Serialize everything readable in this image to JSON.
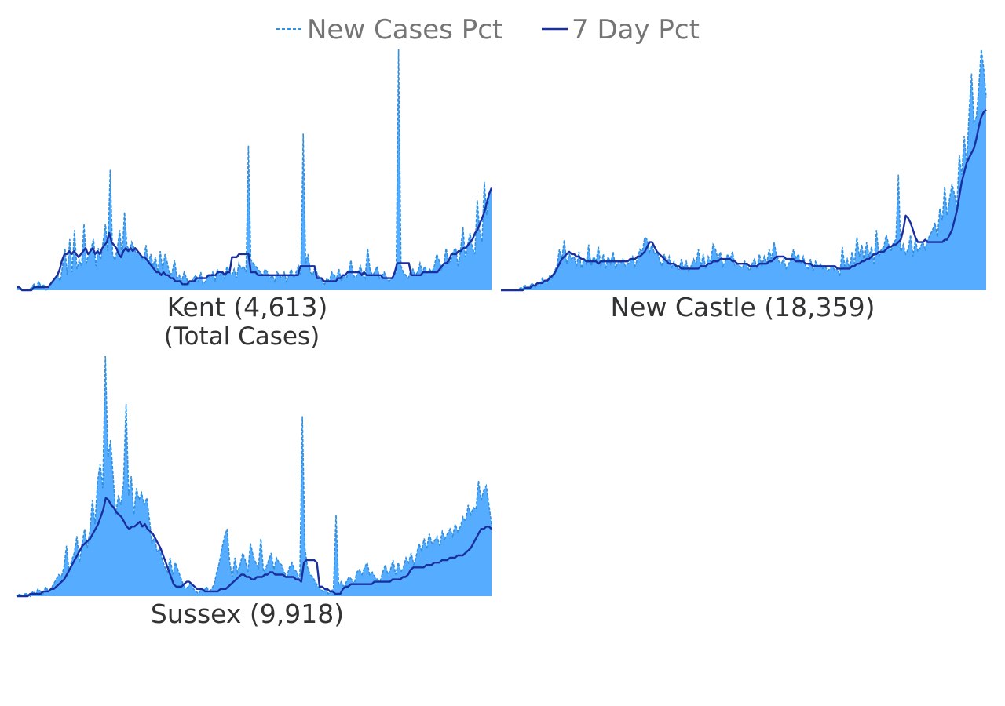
{
  "legend": {
    "new_cases_label": "New Cases Pct",
    "seven_day_label": "7 Day Pct"
  },
  "colors": {
    "area": "#56acff",
    "dashed_line": "#2f8fe0",
    "seven_day_line": "#1a2f9e",
    "legend_text": "#757575",
    "label_text": "#333333"
  },
  "chart_data": [
    {
      "type": "area",
      "county": "Kent",
      "label": "Kent (4,613)",
      "sublabel": "(Total Cases)",
      "series": [
        {
          "name": "New Cases Pct",
          "style": "dashed",
          "values": [
            1,
            1,
            0,
            0,
            0,
            0,
            1,
            2,
            1,
            3,
            1,
            2,
            0,
            1,
            2,
            3,
            4,
            5,
            3,
            8,
            14,
            5,
            17,
            6,
            20,
            7,
            10,
            8,
            22,
            9,
            12,
            14,
            17,
            8,
            14,
            10,
            16,
            22,
            13,
            40,
            12,
            10,
            14,
            20,
            11,
            26,
            15,
            13,
            16,
            14,
            12,
            13,
            11,
            10,
            15,
            9,
            12,
            8,
            11,
            6,
            13,
            7,
            12,
            9,
            5,
            6,
            10,
            4,
            5,
            3,
            6,
            4,
            2,
            3,
            4,
            5,
            3,
            6,
            2,
            3,
            5,
            4,
            6,
            3,
            7,
            5,
            6,
            4,
            8,
            6,
            5,
            7,
            4,
            9,
            7,
            8,
            6,
            48,
            10,
            9,
            8,
            7,
            6,
            5,
            7,
            6,
            4,
            5,
            3,
            6,
            5,
            4,
            6,
            3,
            5,
            7,
            4,
            6,
            8,
            5,
            52,
            9,
            12,
            6,
            5,
            8,
            5,
            4,
            3,
            2,
            4,
            3,
            6,
            5,
            4,
            7,
            3,
            5,
            4,
            6,
            10,
            5,
            4,
            6,
            8,
            5,
            4,
            14,
            7,
            5,
            6,
            8,
            4,
            5,
            6,
            4,
            3,
            4,
            5,
            6,
            80,
            8,
            6,
            5,
            4,
            6,
            7,
            5,
            6,
            9,
            6,
            8,
            6,
            7,
            6,
            8,
            12,
            10,
            7,
            9,
            14,
            9,
            10,
            13,
            14,
            8,
            13,
            21,
            11,
            15,
            19,
            14,
            12,
            30,
            20,
            16,
            36,
            25,
            32,
            34
          ]
        },
        {
          "name": "7 Day Pct",
          "style": "solid",
          "values": [
            1,
            1,
            0,
            0,
            0,
            0,
            0,
            1,
            1,
            1,
            1,
            1,
            1,
            1,
            2,
            3,
            4,
            5,
            7,
            10,
            12,
            12,
            13,
            12,
            13,
            12,
            11,
            12,
            13,
            14,
            12,
            13,
            14,
            12,
            13,
            12,
            14,
            15,
            16,
            19,
            16,
            15,
            14,
            12,
            11,
            13,
            14,
            13,
            14,
            13,
            14,
            13,
            12,
            11,
            11,
            10,
            9,
            8,
            7,
            6,
            6,
            5,
            6,
            5,
            5,
            4,
            4,
            3,
            3,
            3,
            2,
            2,
            2,
            3,
            3,
            3,
            4,
            4,
            4,
            4,
            4,
            5,
            5,
            5,
            5,
            6,
            6,
            6,
            5,
            6,
            6,
            11,
            11,
            11,
            12,
            12,
            12,
            12,
            12,
            6,
            6,
            6,
            5,
            5,
            5,
            5,
            5,
            5,
            5,
            5,
            5,
            5,
            5,
            5,
            5,
            5,
            5,
            5,
            5,
            5,
            8,
            8,
            8,
            8,
            8,
            8,
            8,
            4,
            4,
            4,
            3,
            3,
            3,
            3,
            3,
            3,
            4,
            4,
            5,
            5,
            6,
            6,
            6,
            6,
            6,
            6,
            5,
            6,
            5,
            5,
            5,
            5,
            5,
            5,
            5,
            4,
            4,
            4,
            4,
            4,
            6,
            9,
            9,
            9,
            9,
            9,
            9,
            5,
            5,
            5,
            5,
            5,
            6,
            6,
            6,
            6,
            6,
            6,
            6,
            7,
            8,
            9,
            9,
            10,
            12,
            12,
            12,
            13,
            13,
            14,
            14,
            15,
            16,
            17,
            19,
            20,
            22,
            24,
            26,
            29,
            32,
            34
          ]
        }
      ]
    },
    {
      "type": "area",
      "county": "New Castle",
      "label": "New Castle (18,359)",
      "series": [
        {
          "name": "New Cases Pct",
          "style": "dashed",
          "values": [
            0,
            0,
            0,
            0,
            0,
            0,
            0,
            0,
            1,
            1,
            2,
            1,
            2,
            3,
            1,
            3,
            2,
            5,
            4,
            3,
            6,
            5,
            8,
            10,
            17,
            13,
            21,
            11,
            15,
            13,
            14,
            10,
            16,
            9,
            13,
            11,
            19,
            10,
            14,
            12,
            18,
            10,
            15,
            9,
            14,
            11,
            16,
            9,
            12,
            11,
            13,
            10,
            11,
            12,
            14,
            10,
            13,
            17,
            16,
            22,
            21,
            16,
            19,
            15,
            16,
            13,
            10,
            15,
            11,
            14,
            9,
            12,
            10,
            8,
            13,
            9,
            12,
            8,
            10,
            13,
            11,
            17,
            10,
            15,
            9,
            14,
            12,
            19,
            17,
            13,
            16,
            10,
            12,
            15,
            13,
            16,
            10,
            11,
            10,
            9,
            12,
            10,
            8,
            11,
            13,
            9,
            15,
            10,
            14,
            11,
            17,
            13,
            20,
            15,
            12,
            11,
            13,
            9,
            11,
            13,
            17,
            13,
            15,
            11,
            14,
            10,
            9,
            13,
            8,
            12,
            10,
            11,
            9,
            10,
            8,
            9,
            10,
            8,
            9,
            6,
            18,
            10,
            13,
            9,
            16,
            11,
            22,
            14,
            19,
            12,
            20,
            14,
            18,
            11,
            25,
            14,
            17,
            18,
            23,
            19,
            16,
            20,
            21,
            48,
            16,
            19,
            15,
            17,
            23,
            14,
            21,
            16,
            18,
            20,
            17,
            21,
            23,
            25,
            28,
            22,
            34,
            29,
            43,
            31,
            38,
            44,
            40,
            35,
            56,
            48,
            64,
            52,
            74,
            90,
            70,
            72,
            85,
            100,
            92,
            80
          ]
        },
        {
          "name": "7 Day Pct",
          "style": "solid",
          "values": [
            0,
            0,
            0,
            0,
            0,
            0,
            0,
            0,
            0,
            0,
            1,
            1,
            1,
            2,
            2,
            3,
            3,
            3,
            4,
            4,
            5,
            6,
            7,
            9,
            11,
            13,
            14,
            15,
            16,
            15,
            15,
            14,
            14,
            13,
            13,
            12,
            12,
            12,
            12,
            12,
            11,
            12,
            12,
            12,
            12,
            12,
            12,
            12,
            12,
            12,
            12,
            12,
            12,
            13,
            13,
            13,
            14,
            14,
            15,
            16,
            18,
            20,
            20,
            18,
            16,
            15,
            14,
            13,
            12,
            11,
            11,
            11,
            10,
            10,
            9,
            9,
            9,
            9,
            9,
            9,
            9,
            9,
            10,
            10,
            10,
            11,
            11,
            12,
            12,
            12,
            13,
            13,
            13,
            13,
            13,
            12,
            12,
            11,
            11,
            11,
            11,
            11,
            10,
            10,
            10,
            10,
            11,
            11,
            11,
            11,
            12,
            12,
            13,
            14,
            14,
            14,
            14,
            13,
            13,
            13,
            13,
            12,
            12,
            12,
            12,
            11,
            11,
            11,
            10,
            10,
            10,
            10,
            10,
            10,
            10,
            10,
            10,
            10,
            9,
            9,
            9,
            9,
            9,
            9,
            10,
            10,
            11,
            11,
            12,
            12,
            13,
            13,
            14,
            15,
            15,
            16,
            16,
            16,
            17,
            18,
            18,
            19,
            19,
            20,
            21,
            25,
            31,
            30,
            28,
            25,
            22,
            20,
            20,
            20,
            21,
            20,
            20,
            20,
            20,
            20,
            20,
            20,
            21,
            21,
            23,
            25,
            29,
            33,
            39,
            45,
            49,
            53,
            55,
            57,
            59,
            63,
            68,
            72,
            74,
            75
          ]
        }
      ]
    },
    {
      "type": "area",
      "county": "Sussex",
      "label": "Sussex (9,918)",
      "series": [
        {
          "name": "New Cases Pct",
          "style": "dashed",
          "values": [
            0,
            1,
            0,
            1,
            1,
            0,
            2,
            1,
            3,
            2,
            1,
            4,
            2,
            3,
            5,
            7,
            9,
            8,
            12,
            21,
            10,
            15,
            18,
            25,
            14,
            22,
            28,
            20,
            27,
            40,
            30,
            48,
            55,
            45,
            100,
            58,
            65,
            50,
            34,
            42,
            38,
            47,
            80,
            42,
            50,
            34,
            45,
            40,
            43,
            38,
            41,
            32,
            22,
            25,
            18,
            20,
            15,
            12,
            10,
            16,
            9,
            14,
            11,
            8,
            5,
            3,
            4,
            6,
            3,
            2,
            1,
            3,
            2,
            4,
            2,
            3,
            5,
            10,
            14,
            20,
            25,
            28,
            14,
            8,
            16,
            10,
            13,
            18,
            15,
            10,
            22,
            17,
            14,
            12,
            24,
            10,
            12,
            15,
            18,
            11,
            16,
            14,
            13,
            10,
            8,
            12,
            14,
            11,
            10,
            6,
            75,
            20,
            12,
            9,
            8,
            6,
            4,
            3,
            2,
            3,
            1,
            2,
            3,
            34,
            5,
            6,
            4,
            6,
            8,
            7,
            5,
            10,
            11,
            9,
            12,
            14,
            9,
            10,
            8,
            7,
            6,
            10,
            13,
            9,
            11,
            15,
            9,
            14,
            10,
            12,
            16,
            14,
            18,
            13,
            17,
            22,
            19,
            24,
            20,
            26,
            22,
            23,
            25,
            21,
            27,
            24,
            26,
            28,
            25,
            30,
            27,
            29,
            33,
            31,
            38,
            34,
            37,
            36,
            48,
            40,
            44,
            46,
            38,
            30
          ]
        },
        {
          "name": "7 Day Pct",
          "style": "solid",
          "values": [
            0,
            0,
            0,
            0,
            0,
            1,
            1,
            1,
            1,
            1,
            2,
            2,
            2,
            3,
            3,
            4,
            5,
            6,
            7,
            9,
            11,
            13,
            15,
            17,
            19,
            21,
            22,
            23,
            24,
            26,
            28,
            30,
            33,
            36,
            41,
            40,
            38,
            37,
            35,
            34,
            33,
            31,
            29,
            28,
            29,
            29,
            30,
            31,
            29,
            30,
            28,
            27,
            26,
            24,
            22,
            20,
            17,
            14,
            11,
            8,
            5,
            4,
            4,
            4,
            5,
            6,
            6,
            5,
            4,
            3,
            3,
            3,
            2,
            2,
            2,
            2,
            2,
            2,
            3,
            3,
            3,
            4,
            5,
            6,
            7,
            8,
            9,
            9,
            8,
            8,
            7,
            7,
            8,
            8,
            8,
            9,
            9,
            10,
            10,
            9,
            9,
            9,
            9,
            8,
            8,
            8,
            8,
            7,
            7,
            6,
            14,
            15,
            15,
            15,
            15,
            14,
            4,
            4,
            3,
            3,
            2,
            2,
            1,
            1,
            1,
            3,
            4,
            4,
            5,
            5,
            5,
            5,
            5,
            5,
            5,
            5,
            5,
            6,
            6,
            6,
            6,
            6,
            6,
            6,
            7,
            7,
            7,
            7,
            8,
            8,
            9,
            11,
            12,
            12,
            12,
            12,
            12,
            13,
            13,
            13,
            14,
            14,
            14,
            15,
            15,
            15,
            16,
            16,
            16,
            17,
            17,
            17,
            18,
            19,
            20,
            22,
            24,
            26,
            28,
            28,
            29,
            29,
            28
          ]
        }
      ]
    }
  ]
}
